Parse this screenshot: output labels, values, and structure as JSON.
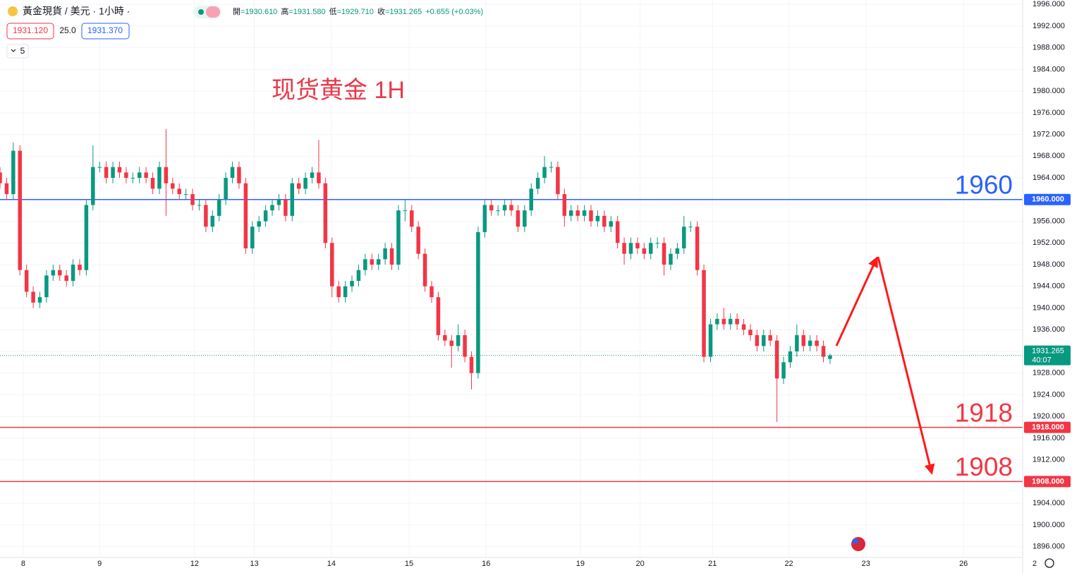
{
  "chart_data": {
    "type": "candlestick",
    "symbol": "黃金現貨 / 美元 · 1小時 ·",
    "ohlc_legend": [
      {
        "label": "開",
        "value": "=1930.610"
      },
      {
        "label": "高",
        "value": "=1931.580"
      },
      {
        "label": "低",
        "value": "=1929.710"
      },
      {
        "label": "收",
        "value": "=1931.265"
      },
      {
        "label": "",
        "value": "+0.655 (+0.03%)"
      }
    ],
    "bid": "1931.120",
    "spread": "25.0",
    "ask": "1931.370",
    "indicator": "5",
    "title": "现货黄金 1H",
    "countdown": "40:07",
    "up_color": "#089981",
    "down_color": "#f23645",
    "grid": true,
    "x": [
      0,
      1,
      2,
      3,
      4,
      5,
      6,
      7,
      8,
      9,
      10,
      11,
      12,
      13,
      14,
      15,
      16,
      17,
      18,
      19,
      20,
      21,
      22,
      23,
      24,
      25,
      26,
      27,
      28,
      29,
      30,
      31,
      32,
      33,
      34,
      35,
      36,
      37,
      38,
      39,
      40,
      41,
      42,
      43,
      44,
      45,
      46,
      47,
      48,
      49,
      50,
      51,
      52,
      53,
      54,
      55,
      56,
      57,
      58,
      59,
      60,
      61,
      62,
      63,
      64,
      65,
      66,
      67,
      68,
      69,
      70,
      71,
      72,
      73,
      74,
      75,
      76,
      77,
      78,
      79,
      80,
      81,
      82,
      83,
      84,
      85,
      86,
      87,
      88,
      89,
      90,
      91,
      92,
      93,
      94,
      95,
      96,
      97,
      98,
      99,
      100,
      101,
      102,
      103,
      104,
      105,
      106,
      107,
      108,
      109,
      110,
      111,
      112,
      113,
      114,
      115,
      116,
      117,
      118,
      119,
      120,
      121,
      122,
      123,
      124,
      125
    ],
    "open": [
      1965,
      1963,
      1961,
      1969,
      1947,
      1943,
      1941,
      1942,
      1946,
      1947,
      1946,
      1945,
      1948,
      1947,
      1959,
      1966,
      1966,
      1964,
      1966,
      1965,
      1964,
      1964,
      1965,
      1964,
      1962,
      1966,
      1963,
      1962,
      1961,
      1961,
      1959,
      1959,
      1955,
      1957,
      1960,
      1964,
      1966,
      1963,
      1951,
      1955,
      1956,
      1958,
      1959,
      1960,
      1957,
      1963,
      1962,
      1964,
      1965,
      1963,
      1952,
      1944,
      1942,
      1944,
      1945,
      1947,
      1949,
      1948,
      1949,
      1951,
      1948,
      1958,
      1958,
      1955,
      1950,
      1944,
      1942,
      1935,
      1934,
      1933,
      1935,
      1931,
      1928,
      1954,
      1959,
      1958,
      1958,
      1959,
      1958,
      1955,
      1958,
      1962,
      1964,
      1966,
      1966,
      1961,
      1957,
      1958,
      1957,
      1958,
      1956,
      1957,
      1955,
      1956,
      1952,
      1950,
      1952,
      1951,
      1950,
      1952,
      1952,
      1948,
      1950,
      1951,
      1955,
      1955,
      1947,
      1931,
      1937,
      1938,
      1937,
      1938,
      1937,
      1936,
      1935,
      1933,
      1935,
      1934,
      1927,
      1930,
      1932,
      1935,
      1933,
      1934,
      1933,
      1930.61
    ],
    "high": [
      1966,
      1964,
      1970.5,
      1970,
      1948,
      1944,
      1943,
      1947,
      1948,
      1948,
      1947,
      1949,
      1949,
      1960,
      1970,
      1967,
      1967,
      1967,
      1967,
      1966,
      1965,
      1966,
      1966,
      1965,
      1967,
      1973,
      1964,
      1963,
      1962,
      1962,
      1960,
      1960,
      1958,
      1961,
      1965,
      1967,
      1967,
      1964,
      1956,
      1957,
      1959,
      1960,
      1961,
      1961,
      1964,
      1964,
      1965,
      1966,
      1971,
      1964,
      1953,
      1945,
      1945,
      1946,
      1948,
      1950,
      1950,
      1950,
      1952,
      1952,
      1959,
      1960,
      1959,
      1956,
      1951,
      1945,
      1943,
      1936,
      1935,
      1937,
      1936,
      1932,
      1955,
      1960,
      1960,
      1959,
      1960,
      1960,
      1959,
      1959,
      1963,
      1965,
      1968,
      1967,
      1967,
      1962,
      1959,
      1959,
      1959,
      1959,
      1958,
      1958,
      1957,
      1957,
      1953,
      1953,
      1953,
      1952,
      1953,
      1953,
      1953,
      1951,
      1952,
      1957,
      1956,
      1956,
      1948,
      1938,
      1939,
      1940,
      1939,
      1939,
      1938,
      1937,
      1936,
      1936,
      1936,
      1935,
      1931,
      1933,
      1937,
      1936,
      1935,
      1935,
      1934,
      1931.58
    ],
    "low": [
      1962,
      1960,
      1960,
      1946,
      1942,
      1940,
      1940,
      1941,
      1945,
      1945,
      1944,
      1944,
      1946,
      1946,
      1958,
      1965,
      1963,
      1963,
      1964,
      1963,
      1963,
      1963,
      1963,
      1961,
      1961,
      1957,
      1961,
      1960,
      1960,
      1958,
      1958,
      1954,
      1954,
      1956,
      1959,
      1963,
      1962,
      1950,
      1950,
      1954,
      1955,
      1957,
      1958,
      1956,
      1956,
      1961,
      1961,
      1963,
      1962,
      1951,
      1942,
      1941,
      1941,
      1943,
      1944,
      1946,
      1947,
      1947,
      1948,
      1947,
      1947,
      1956,
      1954,
      1949,
      1943,
      1941,
      1934,
      1933,
      1929,
      1932,
      1930,
      1925,
      1927,
      1953,
      1957,
      1957,
      1957,
      1957,
      1954,
      1954,
      1957,
      1961,
      1963,
      1965,
      1960,
      1955,
      1956,
      1956,
      1956,
      1955,
      1955,
      1954,
      1954,
      1951,
      1948,
      1949,
      1950,
      1949,
      1949,
      1951,
      1946,
      1947,
      1949,
      1950,
      1954,
      1946,
      1930,
      1930,
      1936,
      1936,
      1936,
      1936,
      1935,
      1934,
      1932,
      1932,
      1933,
      1919,
      1926,
      1929,
      1931,
      1932,
      1932,
      1932,
      1930,
      1929.71
    ],
    "close": [
      1963,
      1961,
      1969,
      1947,
      1943,
      1941,
      1942,
      1946,
      1947,
      1946,
      1945,
      1948,
      1947,
      1959,
      1966,
      1966,
      1964,
      1966,
      1965,
      1964,
      1964,
      1965,
      1964,
      1962,
      1966,
      1963,
      1962,
      1961,
      1961,
      1959,
      1959,
      1955,
      1957,
      1960,
      1964,
      1966,
      1963,
      1951,
      1955,
      1956,
      1958,
      1959,
      1960,
      1957,
      1963,
      1962,
      1964,
      1965,
      1963,
      1952,
      1944,
      1942,
      1944,
      1945,
      1947,
      1949,
      1948,
      1949,
      1951,
      1948,
      1958,
      1958,
      1955,
      1950,
      1944,
      1942,
      1935,
      1934,
      1933,
      1935,
      1931,
      1928,
      1954,
      1959,
      1958,
      1958,
      1959,
      1958,
      1955,
      1958,
      1962,
      1964,
      1966,
      1966,
      1961,
      1957,
      1958,
      1957,
      1958,
      1956,
      1957,
      1955,
      1956,
      1952,
      1950,
      1952,
      1951,
      1950,
      1952,
      1952,
      1948,
      1950,
      1951,
      1955,
      1955,
      1947,
      1931,
      1937,
      1938,
      1937,
      1938,
      1937,
      1936,
      1935,
      1933,
      1935,
      1934,
      1927,
      1930,
      1932,
      1935,
      1933,
      1934,
      1933,
      1931,
      1931.265
    ],
    "xlim": [
      0,
      154
    ],
    "xticks": [
      {
        "value": 3.5,
        "label": "8"
      },
      {
        "value": 15,
        "label": "9"
      },
      {
        "value": 29.3,
        "label": "12"
      },
      {
        "value": 38.3,
        "label": "13"
      },
      {
        "value": 49.9,
        "label": "14"
      },
      {
        "value": 61.6,
        "label": "15"
      },
      {
        "value": 73.2,
        "label": "16"
      },
      {
        "value": 87.4,
        "label": "19"
      },
      {
        "value": 96.4,
        "label": "20"
      },
      {
        "value": 107.3,
        "label": "21"
      },
      {
        "value": 118.8,
        "label": "22"
      },
      {
        "value": 130.4,
        "label": "23"
      },
      {
        "value": 145.1,
        "label": "26"
      },
      {
        "value": 155.8,
        "label": "2"
      }
    ],
    "ylim": [
      1894,
      1996.8
    ],
    "yticks": [
      {
        "value": 1896,
        "label": "1896.000"
      },
      {
        "value": 1900,
        "label": "1900.000"
      },
      {
        "value": 1904,
        "label": "1904.000"
      },
      {
        "value": 1908,
        "label": "1908.000"
      },
      {
        "value": 1912,
        "label": "1912.000"
      },
      {
        "value": 1916,
        "label": "1916.000"
      },
      {
        "value": 1920,
        "label": "1920.000"
      },
      {
        "value": 1924,
        "label": "1924.000"
      },
      {
        "value": 1928,
        "label": "1928.000"
      },
      {
        "value": 1932,
        "label": "1932.000"
      },
      {
        "value": 1936,
        "label": "1936.000"
      },
      {
        "value": 1940,
        "label": "1940.000"
      },
      {
        "value": 1944,
        "label": "1944.000"
      },
      {
        "value": 1948,
        "label": "1948.000"
      },
      {
        "value": 1952,
        "label": "1952.000"
      },
      {
        "value": 1956,
        "label": "1956.000"
      },
      {
        "value": 1960,
        "label": "1960.000"
      },
      {
        "value": 1964,
        "label": "1964.000"
      },
      {
        "value": 1968,
        "label": "1968.000"
      },
      {
        "value": 1972,
        "label": "1972.000"
      },
      {
        "value": 1976,
        "label": "1976.000"
      },
      {
        "value": 1980,
        "label": "1980.000"
      },
      {
        "value": 1984,
        "label": "1984.000"
      },
      {
        "value": 1988,
        "label": "1988.000"
      },
      {
        "value": 1992,
        "label": "1992.000"
      },
      {
        "value": 1996,
        "label": "1996.000"
      }
    ],
    "hlines": [
      {
        "value": 1960,
        "label": "1960",
        "axis_label": "1960.000",
        "color": "#2962ff"
      },
      {
        "value": 1918,
        "label": "1918",
        "axis_label": "1918.000",
        "color": "#f23645"
      },
      {
        "value": 1908,
        "label": "1908",
        "axis_label": "1908.000",
        "color": "#f23645"
      }
    ]
  }
}
